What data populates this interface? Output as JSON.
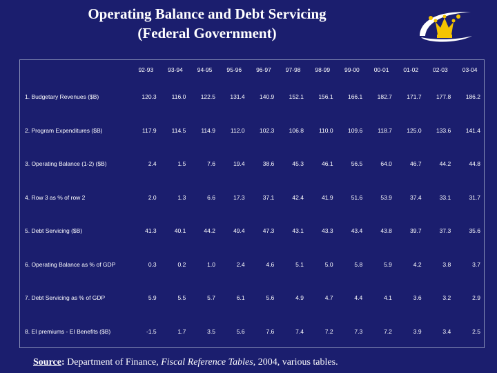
{
  "title": {
    "line1": "Operating Balance and Debt Servicing",
    "line2": "(Federal Government)"
  },
  "logo": {
    "icon": "crown-logo-icon",
    "color": "#f5c400"
  },
  "table": {
    "years": [
      "92-93",
      "93-94",
      "94-95",
      "95-96",
      "96-97",
      "97-98",
      "98-99",
      "99-00",
      "00-01",
      "01-02",
      "02-03",
      "03-04"
    ],
    "rows": [
      {
        "label": "1.  Budgetary Revenues ($B)",
        "values": [
          "120.3",
          "116.0",
          "122.5",
          "131.4",
          "140.9",
          "152.1",
          "156.1",
          "166.1",
          "182.7",
          "171.7",
          "177.8",
          "186.2"
        ]
      },
      {
        "label": "2.  Program Expenditures ($B)",
        "values": [
          "117.9",
          "114.5",
          "114.9",
          "112.0",
          "102.3",
          "106.8",
          "110.0",
          "109.6",
          "118.7",
          "125.0",
          "133.6",
          "141.4"
        ]
      },
      {
        "label": "3.  Operating Balance (1-2) ($B)",
        "values": [
          "2.4",
          "1.5",
          "7.6",
          "19.4",
          "38.6",
          "45.3",
          "46.1",
          "56.5",
          "64.0",
          "46.7",
          "44.2",
          "44.8"
        ]
      },
      {
        "label": "4.  Row 3 as % of row 2",
        "values": [
          "2.0",
          "1.3",
          "6.6",
          "17.3",
          "37.1",
          "42.4",
          "41.9",
          "51.6",
          "53.9",
          "37.4",
          "33.1",
          "31.7"
        ]
      },
      {
        "label": "5.  Debt Servicing ($B)",
        "values": [
          "41.3",
          "40.1",
          "44.2",
          "49.4",
          "47.3",
          "43.1",
          "43.3",
          "43.4",
          "43.8",
          "39.7",
          "37.3",
          "35.6"
        ]
      },
      {
        "label": "6.  Operating Balance as % of GDP",
        "values": [
          "0.3",
          "0.2",
          "1.0",
          "2.4",
          "4.6",
          "5.1",
          "5.0",
          "5.8",
          "5.9",
          "4.2",
          "3.8",
          "3.7"
        ]
      },
      {
        "label": "7.  Debt Servicing as % of GDP",
        "values": [
          "5.9",
          "5.5",
          "5.7",
          "6.1",
          "5.6",
          "4.9",
          "4.7",
          "4.4",
          "4.1",
          "3.6",
          "3.2",
          "2.9"
        ]
      },
      {
        "label": "8.  EI premiums - EI Benefits ($B)",
        "values": [
          "-1.5",
          "1.7",
          "3.5",
          "5.6",
          "7.6",
          "7.4",
          "7.2",
          "7.3",
          "7.2",
          "3.9",
          "3.4",
          "2.5"
        ]
      }
    ]
  },
  "source": {
    "label": "Source",
    "colon": ":",
    "text_before": " Department of Finance, ",
    "italic": "Fiscal Reference Tables",
    "text_after": ", 2004, various tables."
  }
}
